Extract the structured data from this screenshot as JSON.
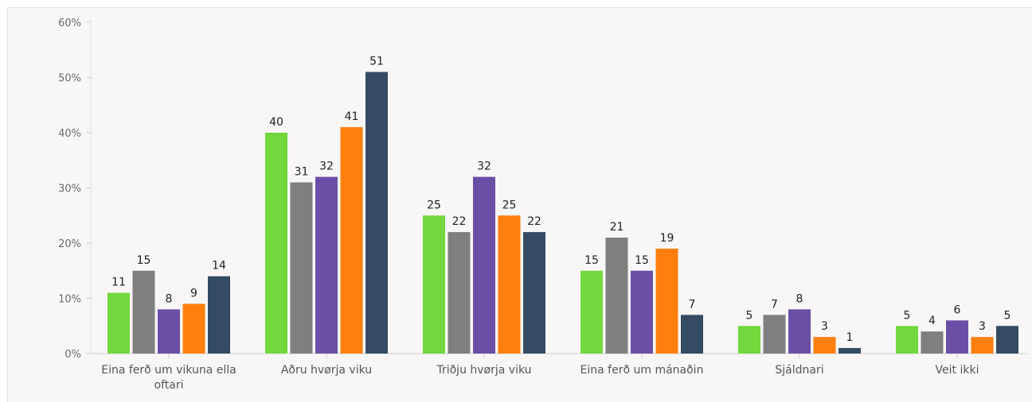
{
  "chart_data": {
    "type": "bar",
    "categories": [
      [
        "Eina ferð um vikuna ella",
        "oftari"
      ],
      [
        "Aðru hvørja viku"
      ],
      [
        "Triðju hvørja viku"
      ],
      [
        "Eina ferð um mánaðin"
      ],
      [
        "Sjáldnari"
      ],
      [
        "Veit ikki"
      ]
    ],
    "series": [
      {
        "color": "#72d83d",
        "values": [
          11,
          40,
          25,
          15,
          5,
          5
        ]
      },
      {
        "color": "#7f7f7f",
        "values": [
          15,
          31,
          22,
          21,
          7,
          4
        ]
      },
      {
        "color": "#6b4fa6",
        "values": [
          8,
          32,
          32,
          15,
          8,
          6
        ]
      },
      {
        "color": "#ff7f0e",
        "values": [
          9,
          41,
          25,
          19,
          3,
          3
        ]
      },
      {
        "color": "#344b63",
        "values": [
          14,
          51,
          22,
          7,
          1,
          5
        ]
      }
    ],
    "y_ticks": [
      "0%",
      "10%",
      "20%",
      "30%",
      "40%",
      "50%",
      "60%"
    ],
    "ylim": [
      0,
      60
    ],
    "grid": false,
    "legend": "none"
  }
}
